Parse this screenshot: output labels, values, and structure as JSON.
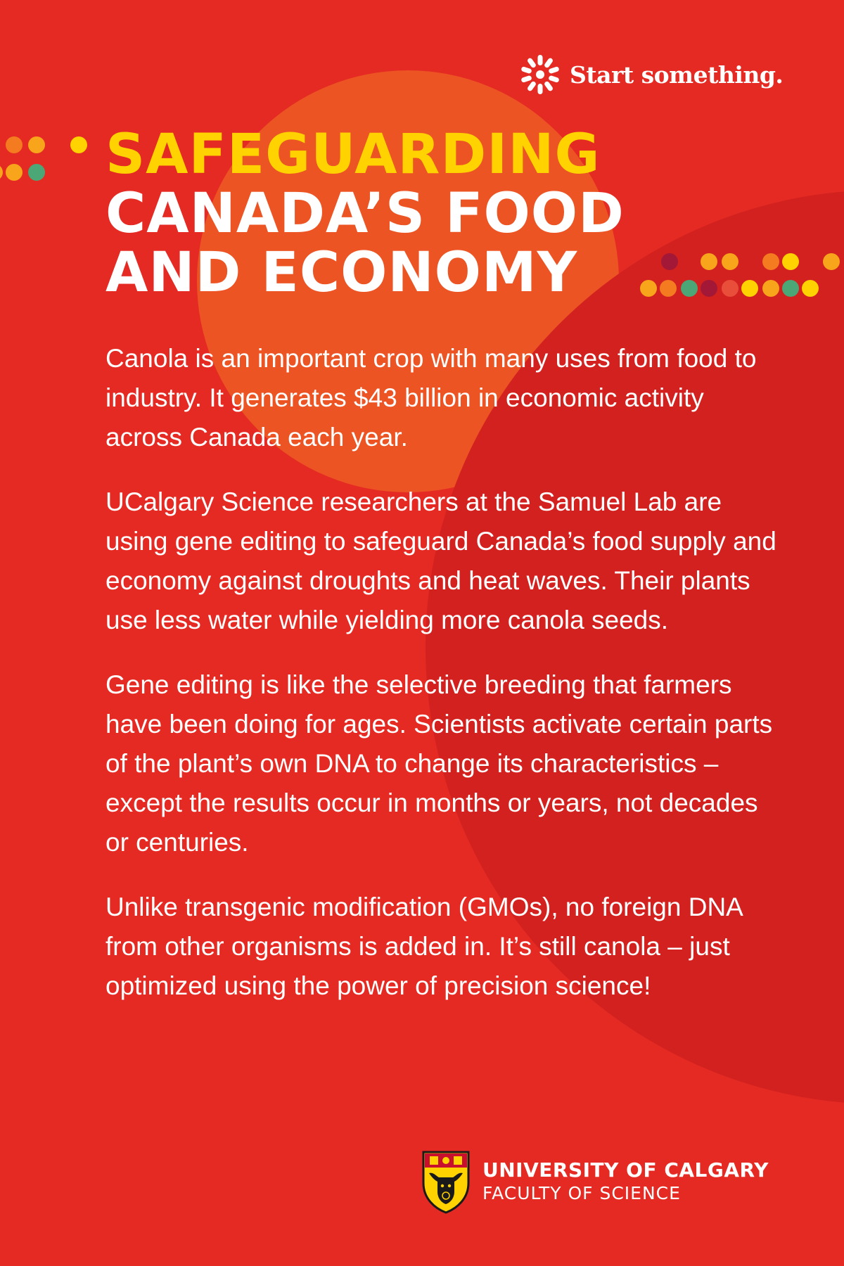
{
  "colors": {
    "background": "#e52a23",
    "orange_circle": "#ec5424",
    "dark_circle": "#d2211f",
    "headline_accent": "#ffd200",
    "text": "#ffffff",
    "dot_orange": "#f47b20",
    "dot_amber": "#f8a51b",
    "dot_yellow": "#ffd200",
    "dot_teal": "#4ba776",
    "dot_maroon": "#a31836",
    "dot_red": "#e94e3a"
  },
  "brand": {
    "icon": "asterisk-burst-icon",
    "tagline": "Start something."
  },
  "headline": {
    "line1": "SAFEGUARDING",
    "line2": "CANADA’S FOOD",
    "line3": "AND ECONOMY"
  },
  "body": {
    "paragraphs": [
      "Canola is an important crop with many uses from food to industry. It generates $43 billion in economic activity across Canada each year.",
      "UCalgary Science researchers at the Samuel Lab are using gene editing to safeguard Canada’s food supply and economy against droughts and heat waves. Their plants use less water while yielding more canola seeds.",
      "Gene editing is like the selective breeding that farmers have been doing for ages. Scientists activate certain parts of the plant’s own DNA to change its characteristics – except the results occur in months or years, not decades or centuries.",
      "Unlike transgenic modification (GMOs), no foreign DNA from other organisms is added in. It’s still canola – just optimized using the power of precision science!"
    ]
  },
  "footer": {
    "logo_icon": "university-crest-icon",
    "university": "UNIVERSITY OF CALGARY",
    "faculty": "FACULTY OF SCIENCE"
  }
}
